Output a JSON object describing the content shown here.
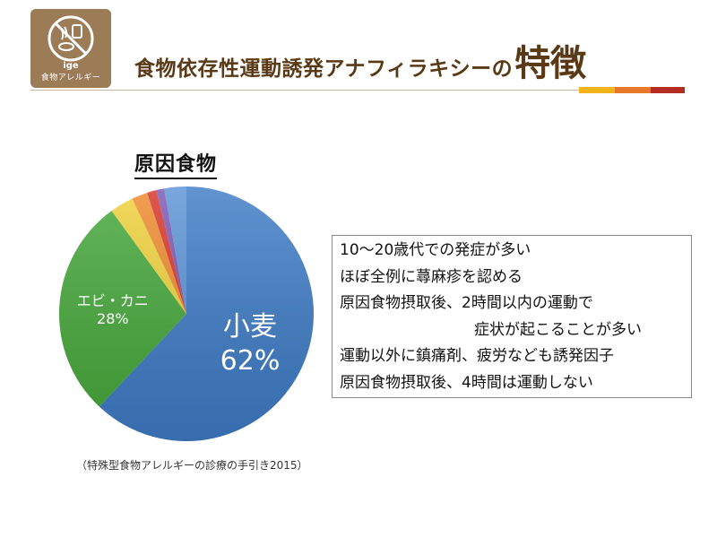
{
  "header": {
    "logo_caption": "食物アレルギー",
    "logo_letters": "ige",
    "title_main": "食物依存性運動誘発アナフィラキシーの",
    "title_emphasis": "特徴",
    "accent_colors": [
      "#f2b41a",
      "#e8792a",
      "#b52c25"
    ]
  },
  "chart_data": {
    "type": "pie",
    "title": "原因食物",
    "slices": [
      {
        "label": "小麦",
        "value": 62,
        "value_label": "62%",
        "color": "#3e7cc6"
      },
      {
        "label": "エビ・カニ",
        "value": 28,
        "value_label": "28%",
        "color": "#46a83a"
      },
      {
        "label": "",
        "value": 3,
        "color": "#f0d23c"
      },
      {
        "label": "",
        "value": 2,
        "color": "#ee8a2c"
      },
      {
        "label": "",
        "value": 1.2,
        "color": "#d8342a"
      },
      {
        "label": "",
        "value": 1,
        "color": "#7b58b4"
      },
      {
        "label": "",
        "value": 2.8,
        "color": "#5b93d6"
      }
    ]
  },
  "features": [
    "10～20歳代での発症が多い",
    "ほぼ全例に蕁麻疹を認める",
    "原因食物摂取後、2時間以内の運動で",
    "症状が起こることが多い",
    "運動以外に鎮痛剤、疲労なども誘発因子",
    "原因食物摂取後、4時間は運動しない"
  ],
  "source": "（特殊型食物アレルギーの診療の手引き2015）"
}
